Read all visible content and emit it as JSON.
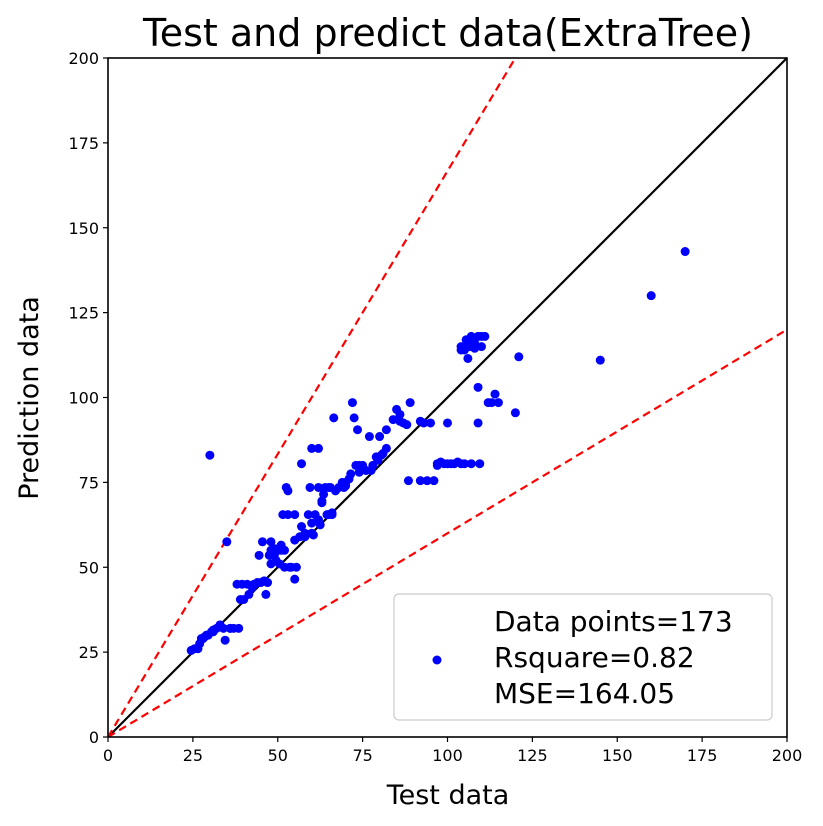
{
  "chart_data": {
    "type": "scatter",
    "title": "Test and predict data(ExtraTree)",
    "xlabel": "Test data",
    "ylabel": "Prediction data",
    "xlim": [
      0,
      200
    ],
    "ylim": [
      0,
      200
    ],
    "xticks": [
      0,
      25,
      50,
      75,
      100,
      125,
      150,
      175,
      200
    ],
    "yticks": [
      0,
      25,
      50,
      75,
      100,
      125,
      150,
      175,
      200
    ],
    "grid": false,
    "legend_position": "bottom-right",
    "legend": [
      "Data points=173",
      "Rsquare=0.82",
      "MSE=164.05"
    ],
    "colors": {
      "points": "#0000ff",
      "identity_line": "#000000",
      "bound_lines": "#ff0000"
    },
    "lines": [
      {
        "style": "solid",
        "color": "#000000",
        "slope": 1.0
      },
      {
        "style": "dashed",
        "color": "#ff0000",
        "slope": 1.667
      },
      {
        "style": "dashed",
        "color": "#ff0000",
        "slope": 0.6
      }
    ],
    "points": [
      [
        24.5,
        25.5
      ],
      [
        25.5,
        26
      ],
      [
        26.5,
        26
      ],
      [
        27,
        27.5
      ],
      [
        27.5,
        29
      ],
      [
        28.5,
        29.5
      ],
      [
        29.5,
        30
      ],
      [
        30.5,
        31
      ],
      [
        31,
        31.5
      ],
      [
        32,
        32
      ],
      [
        33,
        33
      ],
      [
        34,
        32
      ],
      [
        34.5,
        28.5
      ],
      [
        35,
        57.5
      ],
      [
        36,
        32
      ],
      [
        30,
        83
      ],
      [
        38,
        45
      ],
      [
        38.5,
        32
      ],
      [
        39,
        40.5
      ],
      [
        39.5,
        45
      ],
      [
        40,
        40.5
      ],
      [
        41,
        45
      ],
      [
        41.5,
        42
      ],
      [
        42.5,
        44
      ],
      [
        44,
        45.5
      ],
      [
        44.5,
        53.5
      ],
      [
        45,
        45.5
      ],
      [
        45.5,
        57.5
      ],
      [
        46,
        46
      ],
      [
        46.5,
        42
      ],
      [
        47,
        45.5
      ],
      [
        47.5,
        53.5
      ],
      [
        48,
        57.5
      ],
      [
        48,
        55
      ],
      [
        48.5,
        54.5
      ],
      [
        49,
        53.5
      ],
      [
        49,
        55.5
      ],
      [
        49.5,
        52
      ],
      [
        50,
        55
      ],
      [
        50.5,
        51
      ],
      [
        51,
        56.5
      ],
      [
        51,
        55
      ],
      [
        51.5,
        65.5
      ],
      [
        52,
        50
      ],
      [
        52.5,
        73.5
      ],
      [
        53,
        65.5
      ],
      [
        53,
        72.5
      ],
      [
        53.5,
        50
      ],
      [
        54,
        50
      ],
      [
        55,
        65.5
      ],
      [
        55,
        46.5
      ],
      [
        55.5,
        50
      ],
      [
        56.5,
        59
      ],
      [
        57,
        80.5
      ],
      [
        57,
        62
      ],
      [
        58,
        59
      ],
      [
        59,
        65.5
      ],
      [
        59.5,
        73.5
      ],
      [
        60,
        85
      ],
      [
        60,
        60
      ],
      [
        60.5,
        59.5
      ],
      [
        61,
        65.5
      ],
      [
        62,
        85
      ],
      [
        62,
        73.5
      ],
      [
        62.5,
        62.5
      ],
      [
        63,
        69.5
      ],
      [
        63.5,
        71.5
      ],
      [
        64,
        73.5
      ],
      [
        64.5,
        65.5
      ],
      [
        65,
        73.5
      ],
      [
        65,
        65.5
      ],
      [
        65.5,
        73.5
      ],
      [
        66,
        65.5
      ],
      [
        66.5,
        94
      ],
      [
        67,
        72.5
      ],
      [
        68,
        73.5
      ],
      [
        69,
        75
      ],
      [
        69.5,
        73.5
      ],
      [
        70,
        75
      ],
      [
        71,
        76
      ],
      [
        71.5,
        77.5
      ],
      [
        72,
        98.5
      ],
      [
        72.5,
        94
      ],
      [
        73,
        80
      ],
      [
        73.5,
        90.5
      ],
      [
        74,
        78
      ],
      [
        75,
        80
      ],
      [
        76,
        78.5
      ],
      [
        77,
        88.5
      ],
      [
        77.5,
        78.5
      ],
      [
        78,
        80
      ],
      [
        79,
        82.5
      ],
      [
        79.5,
        81.5
      ],
      [
        80,
        88.5
      ],
      [
        80.5,
        83
      ],
      [
        81,
        83.5
      ],
      [
        82,
        90.5
      ],
      [
        84,
        93.5
      ],
      [
        85,
        96.5
      ],
      [
        86,
        95
      ],
      [
        87,
        92.5
      ],
      [
        88,
        92
      ],
      [
        88.5,
        75.5
      ],
      [
        89,
        98.5
      ],
      [
        92,
        75.5
      ],
      [
        93,
        92.5
      ],
      [
        94,
        75.5
      ],
      [
        95,
        92.5
      ],
      [
        96,
        75.5
      ],
      [
        97,
        80.5
      ],
      [
        97,
        80
      ],
      [
        98,
        81
      ],
      [
        99,
        80.5
      ],
      [
        100,
        80.5
      ],
      [
        100,
        92.5
      ],
      [
        101,
        80.5
      ],
      [
        102,
        80.5
      ],
      [
        103,
        81
      ],
      [
        104,
        80.5
      ],
      [
        104,
        115
      ],
      [
        105,
        114
      ],
      [
        105,
        80.5
      ],
      [
        105.5,
        117
      ],
      [
        106,
        116
      ],
      [
        106,
        111.5
      ],
      [
        106.5,
        115
      ],
      [
        107,
        118
      ],
      [
        107,
        80.5
      ],
      [
        107.5,
        116.5
      ],
      [
        108,
        117.5
      ],
      [
        108,
        114.5
      ],
      [
        108.5,
        115
      ],
      [
        109,
        118
      ],
      [
        109,
        103
      ],
      [
        109,
        92.5
      ],
      [
        109.5,
        80.5
      ],
      [
        110,
        115
      ],
      [
        110,
        118
      ],
      [
        111,
        118
      ],
      [
        112,
        98.5
      ],
      [
        113,
        98.5
      ],
      [
        114,
        101
      ],
      [
        115,
        98.5
      ],
      [
        120,
        95.5
      ],
      [
        121,
        112
      ],
      [
        145,
        111
      ],
      [
        160,
        130
      ],
      [
        170,
        143
      ],
      [
        104,
        114
      ],
      [
        106,
        117
      ],
      [
        52,
        55
      ],
      [
        58,
        60
      ],
      [
        66,
        66
      ],
      [
        62,
        64
      ],
      [
        86,
        93
      ],
      [
        74,
        80
      ],
      [
        63,
        69
      ],
      [
        48,
        51
      ],
      [
        43,
        45
      ],
      [
        37,
        32
      ],
      [
        31,
        31
      ],
      [
        29,
        30
      ],
      [
        28,
        29
      ],
      [
        33,
        33
      ],
      [
        36,
        32
      ],
      [
        55,
        58
      ],
      [
        70,
        74
      ],
      [
        82,
        85
      ],
      [
        92,
        93
      ],
      [
        60,
        63
      ],
      [
        107,
        116
      ],
      [
        108,
        116
      ],
      [
        105,
        115
      ]
    ]
  }
}
